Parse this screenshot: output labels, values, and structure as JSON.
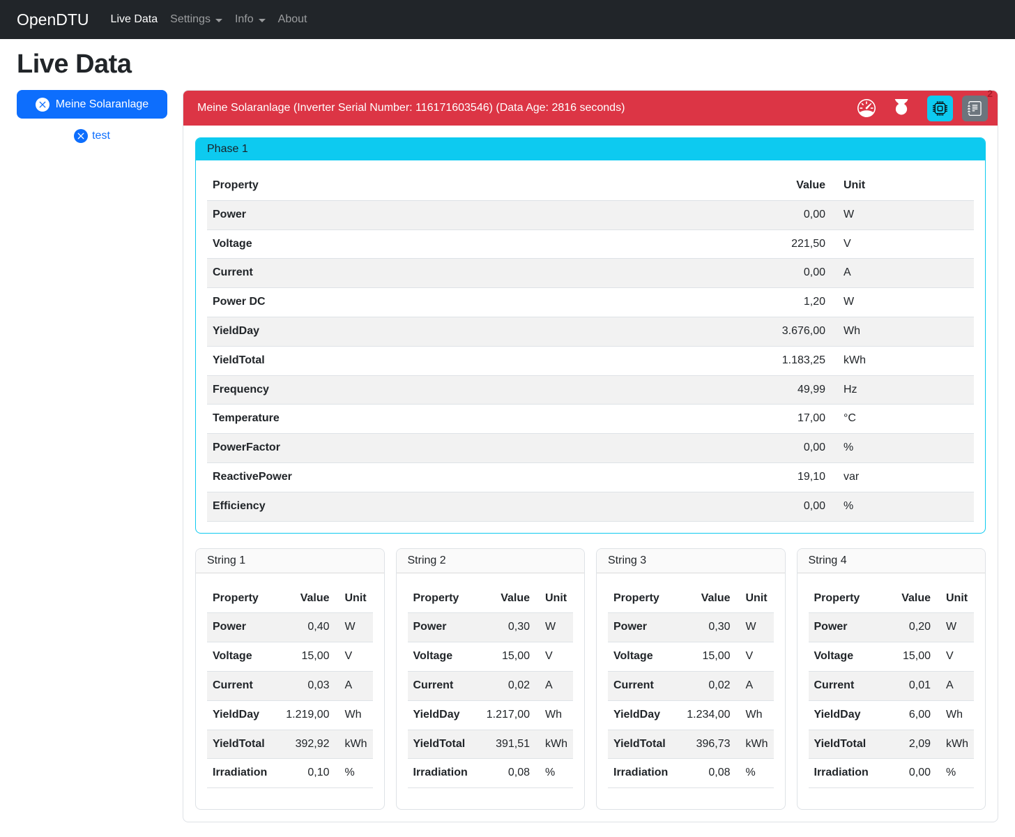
{
  "colors": {
    "primary": "#0d6efd",
    "danger": "#dc3545",
    "info": "#0dcaf0",
    "secondary": "#6c757d",
    "navbar_bg": "#212529"
  },
  "navbar": {
    "brand": "OpenDTU",
    "items": [
      {
        "label": "Live Data",
        "active": true,
        "dropdown": false
      },
      {
        "label": "Settings",
        "active": false,
        "dropdown": true
      },
      {
        "label": "Info",
        "active": false,
        "dropdown": true
      },
      {
        "label": "About",
        "active": false,
        "dropdown": false
      }
    ]
  },
  "page_title": "Live Data",
  "inverter_selector": {
    "selected": "Meine Solaranlage",
    "selected_icon": "x-circle-fill-icon",
    "other": "test",
    "other_icon": "x-circle-fill-icon"
  },
  "inverter_header": {
    "title": "Meine Solaranlage (Inverter Serial Number: 116171603546) (Data Age: 2816 seconds)",
    "alarm_count": "2",
    "buttons": [
      {
        "icon": "speedometer-icon",
        "style": "plain"
      },
      {
        "icon": "power-icon",
        "style": "plain"
      },
      {
        "icon": "cpu-icon",
        "style": "info-button"
      },
      {
        "icon": "journal-text-icon",
        "style": "secondary-button",
        "badge": "2"
      }
    ]
  },
  "phase_card": {
    "title": "Phase 1",
    "table": {
      "headers": [
        "Property",
        "Value",
        "Unit"
      ],
      "rows": [
        {
          "property": "Power",
          "value": "0,00",
          "unit": "W"
        },
        {
          "property": "Voltage",
          "value": "221,50",
          "unit": "V"
        },
        {
          "property": "Current",
          "value": "0,00",
          "unit": "A"
        },
        {
          "property": "Power DC",
          "value": "1,20",
          "unit": "W"
        },
        {
          "property": "YieldDay",
          "value": "3.676,00",
          "unit": "Wh"
        },
        {
          "property": "YieldTotal",
          "value": "1.183,25",
          "unit": "kWh"
        },
        {
          "property": "Frequency",
          "value": "49,99",
          "unit": "Hz"
        },
        {
          "property": "Temperature",
          "value": "17,00",
          "unit": "°C"
        },
        {
          "property": "PowerFactor",
          "value": "0,00",
          "unit": "%"
        },
        {
          "property": "ReactivePower",
          "value": "19,10",
          "unit": "var"
        },
        {
          "property": "Efficiency",
          "value": "0,00",
          "unit": "%"
        }
      ]
    }
  },
  "string_cards": [
    {
      "title": "String 1",
      "headers": [
        "Property",
        "Value",
        "Unit"
      ],
      "rows": [
        {
          "property": "Power",
          "value": "0,40",
          "unit": "W"
        },
        {
          "property": "Voltage",
          "value": "15,00",
          "unit": "V"
        },
        {
          "property": "Current",
          "value": "0,03",
          "unit": "A"
        },
        {
          "property": "YieldDay",
          "value": "1.219,00",
          "unit": "Wh"
        },
        {
          "property": "YieldTotal",
          "value": "392,92",
          "unit": "kWh"
        },
        {
          "property": "Irradiation",
          "value": "0,10",
          "unit": "%"
        }
      ]
    },
    {
      "title": "String 2",
      "headers": [
        "Property",
        "Value",
        "Unit"
      ],
      "rows": [
        {
          "property": "Power",
          "value": "0,30",
          "unit": "W"
        },
        {
          "property": "Voltage",
          "value": "15,00",
          "unit": "V"
        },
        {
          "property": "Current",
          "value": "0,02",
          "unit": "A"
        },
        {
          "property": "YieldDay",
          "value": "1.217,00",
          "unit": "Wh"
        },
        {
          "property": "YieldTotal",
          "value": "391,51",
          "unit": "kWh"
        },
        {
          "property": "Irradiation",
          "value": "0,08",
          "unit": "%"
        }
      ]
    },
    {
      "title": "String 3",
      "headers": [
        "Property",
        "Value",
        "Unit"
      ],
      "rows": [
        {
          "property": "Power",
          "value": "0,30",
          "unit": "W"
        },
        {
          "property": "Voltage",
          "value": "15,00",
          "unit": "V"
        },
        {
          "property": "Current",
          "value": "0,02",
          "unit": "A"
        },
        {
          "property": "YieldDay",
          "value": "1.234,00",
          "unit": "Wh"
        },
        {
          "property": "YieldTotal",
          "value": "396,73",
          "unit": "kWh"
        },
        {
          "property": "Irradiation",
          "value": "0,08",
          "unit": "%"
        }
      ]
    },
    {
      "title": "String 4",
      "headers": [
        "Property",
        "Value",
        "Unit"
      ],
      "rows": [
        {
          "property": "Power",
          "value": "0,20",
          "unit": "W"
        },
        {
          "property": "Voltage",
          "value": "15,00",
          "unit": "V"
        },
        {
          "property": "Current",
          "value": "0,01",
          "unit": "A"
        },
        {
          "property": "YieldDay",
          "value": "6,00",
          "unit": "Wh"
        },
        {
          "property": "YieldTotal",
          "value": "2,09",
          "unit": "kWh"
        },
        {
          "property": "Irradiation",
          "value": "0,00",
          "unit": "%"
        }
      ]
    }
  ]
}
